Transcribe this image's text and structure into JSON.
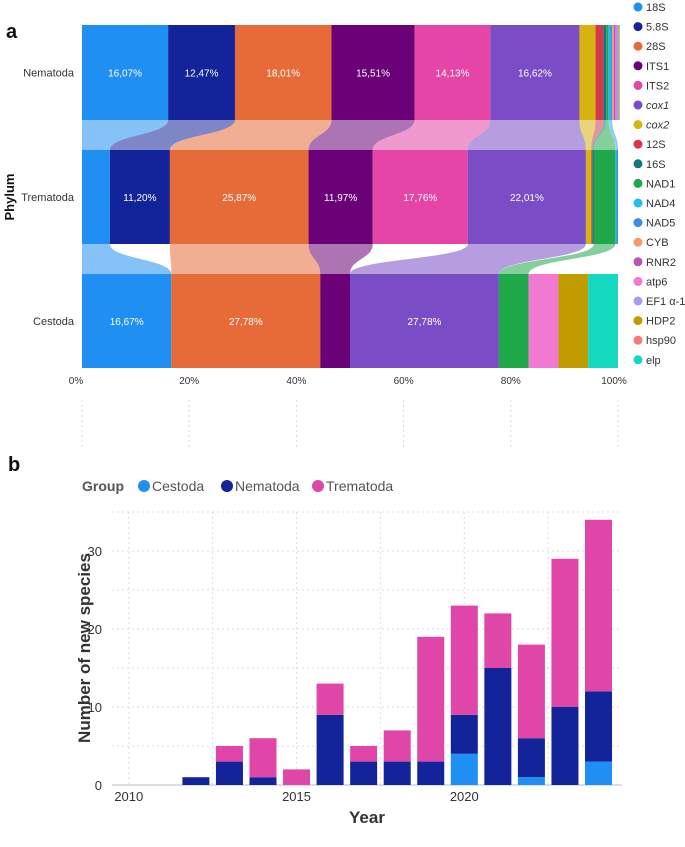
{
  "panel_a_label": "a",
  "panel_b_label": "b",
  "chart_data": [
    {
      "type": "bar",
      "orientation": "horizontal-stacked-percent",
      "title": "",
      "ylabel": "Phylum",
      "xlabel": "",
      "categories": [
        "Nematoda",
        "Trematoda",
        "Cestoda"
      ],
      "xticks": [
        "0%",
        "20%",
        "40%",
        "60%",
        "80%",
        "100%"
      ],
      "xlim": [
        0,
        100
      ],
      "legend_position": "right",
      "markers": [
        {
          "name": "18S",
          "label": "18S",
          "color": "#1f8ff3",
          "italic": false
        },
        {
          "name": "5.8S",
          "label": "5.8S",
          "color": "#13249a",
          "italic": false
        },
        {
          "name": "28S",
          "label": "28S",
          "color": "#e76b38",
          "italic": false
        },
        {
          "name": "ITS1",
          "label": "ITS1",
          "color": "#6a0176",
          "italic": false
        },
        {
          "name": "ITS2",
          "label": "ITS2",
          "color": "#e445a6",
          "italic": false
        },
        {
          "name": "cox1",
          "label": "cox1",
          "color": "#7a4cc5",
          "italic": true
        },
        {
          "name": "cox2",
          "label": "cox2",
          "color": "#d6b30f",
          "italic": true
        },
        {
          "name": "12S",
          "label": "12S",
          "color": "#d5384a",
          "italic": false
        },
        {
          "name": "16S",
          "label": "16S",
          "color": "#137a7a",
          "italic": false
        },
        {
          "name": "NAD1",
          "label": "NAD1",
          "color": "#1fa84a",
          "italic": false
        },
        {
          "name": "NAD4",
          "label": "NAD4",
          "color": "#22c0e6",
          "italic": false
        },
        {
          "name": "NAD5",
          "label": "NAD5",
          "color": "#3a8fe0",
          "italic": false
        },
        {
          "name": "CYB",
          "label": "CYB",
          "color": "#f59a6b",
          "italic": false
        },
        {
          "name": "RNR2",
          "label": "RNR2",
          "color": "#b457b9",
          "italic": false
        },
        {
          "name": "atp6",
          "label": "atp6",
          "color": "#f279d1",
          "italic": false
        },
        {
          "name": "EF1 α-1",
          "label": "EF1 α-1",
          "color": "#ab9bf0",
          "italic": false
        },
        {
          "name": "HDP2",
          "label": "HDP2",
          "color": "#c19c00",
          "italic": false
        },
        {
          "name": "hsp90",
          "label": "hsp90",
          "color": "#f07c7c",
          "italic": false
        },
        {
          "name": "elp",
          "label": "elp",
          "color": "#14d8c0",
          "italic": false
        }
      ],
      "rows": [
        {
          "category": "Nematoda",
          "segments": [
            {
              "marker": "18S",
              "value": 16.07,
              "label": "16,07%"
            },
            {
              "marker": "5.8S",
              "value": 12.47,
              "label": "12,47%"
            },
            {
              "marker": "28S",
              "value": 18.01,
              "label": "18,01%"
            },
            {
              "marker": "ITS1",
              "value": 15.51,
              "label": "15,51%"
            },
            {
              "marker": "ITS2",
              "value": 14.13,
              "label": "14,13%"
            },
            {
              "marker": "cox1",
              "value": 16.62,
              "label": "16,62%"
            },
            {
              "marker": "cox2",
              "value": 3.0,
              "label": ""
            },
            {
              "marker": "12S",
              "value": 1.5,
              "label": ""
            },
            {
              "marker": "16S",
              "value": 0.5,
              "label": ""
            },
            {
              "marker": "NAD1",
              "value": 0.4,
              "label": ""
            },
            {
              "marker": "NAD4",
              "value": 0.4,
              "label": ""
            },
            {
              "marker": "NAD5",
              "value": 0.3,
              "label": ""
            },
            {
              "marker": "CYB",
              "value": 0.3,
              "label": ""
            },
            {
              "marker": "RNR2",
              "value": 0.3,
              "label": ""
            },
            {
              "marker": "atp6",
              "value": 0.3,
              "label": ""
            },
            {
              "marker": "EF1 α-1",
              "value": 0.2,
              "label": ""
            },
            {
              "marker": "HDP2",
              "value": 0.1,
              "label": ""
            },
            {
              "marker": "hsp90",
              "value": 0.1,
              "label": ""
            },
            {
              "marker": "elp",
              "value": 0.09,
              "label": ""
            }
          ]
        },
        {
          "category": "Trematoda",
          "segments": [
            {
              "marker": "18S",
              "value": 5.2,
              "label": ""
            },
            {
              "marker": "5.8S",
              "value": 11.2,
              "label": "11,20%"
            },
            {
              "marker": "28S",
              "value": 25.87,
              "label": "25,87%"
            },
            {
              "marker": "ITS1",
              "value": 11.97,
              "label": "11,97%"
            },
            {
              "marker": "ITS2",
              "value": 17.76,
              "label": "17,76%"
            },
            {
              "marker": "cox1",
              "value": 22.01,
              "label": "22,01%"
            },
            {
              "marker": "cox2",
              "value": 1.0,
              "label": ""
            },
            {
              "marker": "12S",
              "value": 0.2,
              "label": ""
            },
            {
              "marker": "16S",
              "value": 0.3,
              "label": ""
            },
            {
              "marker": "NAD1",
              "value": 4.0,
              "label": ""
            },
            {
              "marker": "NAD4",
              "value": 0.2,
              "label": ""
            },
            {
              "marker": "NAD5",
              "value": 0.29,
              "label": ""
            }
          ]
        },
        {
          "category": "Cestoda",
          "segments": [
            {
              "marker": "18S",
              "value": 16.67,
              "label": "16,67%"
            },
            {
              "marker": "28S",
              "value": 27.78,
              "label": "27,78%"
            },
            {
              "marker": "ITS1",
              "value": 5.55,
              "label": ""
            },
            {
              "marker": "cox1",
              "value": 27.78,
              "label": "27,78%"
            },
            {
              "marker": "NAD1",
              "value": 5.55,
              "label": ""
            },
            {
              "marker": "atp6",
              "value": 5.56,
              "label": ""
            },
            {
              "marker": "HDP2",
              "value": 5.55,
              "label": ""
            },
            {
              "marker": "elp",
              "value": 5.56,
              "label": ""
            }
          ]
        }
      ]
    },
    {
      "type": "bar",
      "orientation": "vertical-stacked",
      "title": "",
      "xlabel": "Year",
      "ylabel": "Number of new species",
      "legend_title": "Group",
      "legend_position": "top-left",
      "ylim": [
        0,
        35
      ],
      "yticks": [
        0,
        10,
        20,
        30
      ],
      "xlim": [
        2009.5,
        2024.7
      ],
      "xticks": [
        2010,
        2015,
        2020
      ],
      "series": [
        {
          "name": "Cestoda",
          "color": "#1f8ff3",
          "values": [
            0,
            0,
            0,
            0,
            0,
            0,
            0,
            0,
            0,
            0,
            4,
            0,
            1,
            0,
            3
          ]
        },
        {
          "name": "Nematoda",
          "color": "#13249a",
          "values": [
            0,
            0,
            1,
            3,
            1,
            0,
            9,
            3,
            3,
            3,
            5,
            15,
            5,
            10,
            9
          ]
        },
        {
          "name": "Trematoda",
          "color": "#e045a8",
          "values": [
            0,
            0,
            0,
            2,
            5,
            2,
            4,
            2,
            4,
            16,
            14,
            7,
            12,
            19,
            22
          ]
        }
      ],
      "x": [
        2010,
        2011,
        2012,
        2013,
        2014,
        2015,
        2016,
        2017,
        2018,
        2019,
        2020,
        2021,
        2022,
        2023,
        2024
      ]
    }
  ]
}
